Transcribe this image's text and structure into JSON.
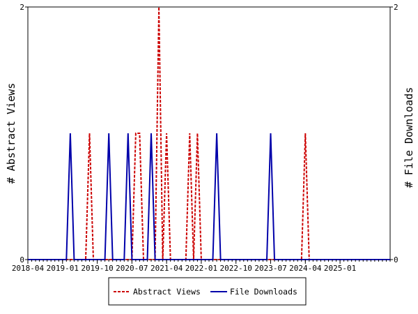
{
  "chart_data": {
    "type": "line",
    "ylabel_left": "# Abstract Views",
    "ylabel_right": "# File Downloads",
    "ylim": [
      0,
      2
    ],
    "y_ticks": [
      "0",
      "2"
    ],
    "y_tick_values": [
      0,
      2
    ],
    "x_range": [
      "2018-04",
      "2026-02"
    ],
    "x_tick_labels": [
      "2018-04",
      "2019-01",
      "2019-10",
      "2020-07",
      "2021-04",
      "2022-01",
      "2022-10",
      "2023-07",
      "2024-04",
      "2025-01"
    ],
    "legend_placement": "bottom-center",
    "series": [
      {
        "name": "Abstract Views",
        "color": "#cc0000",
        "dash": "dashed",
        "axis": "left",
        "points": [
          [
            "2018-04",
            0
          ],
          [
            "2019-07",
            0
          ],
          [
            "2019-08",
            1
          ],
          [
            "2019-09",
            0
          ],
          [
            "2020-07",
            0
          ],
          [
            "2020-08",
            1
          ],
          [
            "2020-09",
            1
          ],
          [
            "2020-10",
            0
          ],
          [
            "2021-01",
            0
          ],
          [
            "2021-02",
            2
          ],
          [
            "2021-03",
            0
          ],
          [
            "2021-04",
            1
          ],
          [
            "2021-05",
            0
          ],
          [
            "2021-09",
            0
          ],
          [
            "2021-10",
            1
          ],
          [
            "2021-11",
            0
          ],
          [
            "2021-12",
            1
          ],
          [
            "2022-01",
            0
          ],
          [
            "2024-03",
            0
          ],
          [
            "2024-04",
            1
          ],
          [
            "2024-05",
            0
          ],
          [
            "2026-02",
            0
          ]
        ]
      },
      {
        "name": "File Downloads",
        "color": "#0000aa",
        "dash": "solid",
        "axis": "right",
        "points": [
          [
            "2018-04",
            0
          ],
          [
            "2019-02",
            0
          ],
          [
            "2019-03",
            1
          ],
          [
            "2019-04",
            0
          ],
          [
            "2019-12",
            0
          ],
          [
            "2020-01",
            1
          ],
          [
            "2020-02",
            0
          ],
          [
            "2020-05",
            0
          ],
          [
            "2020-06",
            1
          ],
          [
            "2020-07",
            0
          ],
          [
            "2020-11",
            0
          ],
          [
            "2020-12",
            1
          ],
          [
            "2021-01",
            0
          ],
          [
            "2022-04",
            0
          ],
          [
            "2022-05",
            1
          ],
          [
            "2022-06",
            0
          ],
          [
            "2023-06",
            0
          ],
          [
            "2023-07",
            1
          ],
          [
            "2023-08",
            0
          ],
          [
            "2026-02",
            0
          ]
        ]
      }
    ]
  }
}
